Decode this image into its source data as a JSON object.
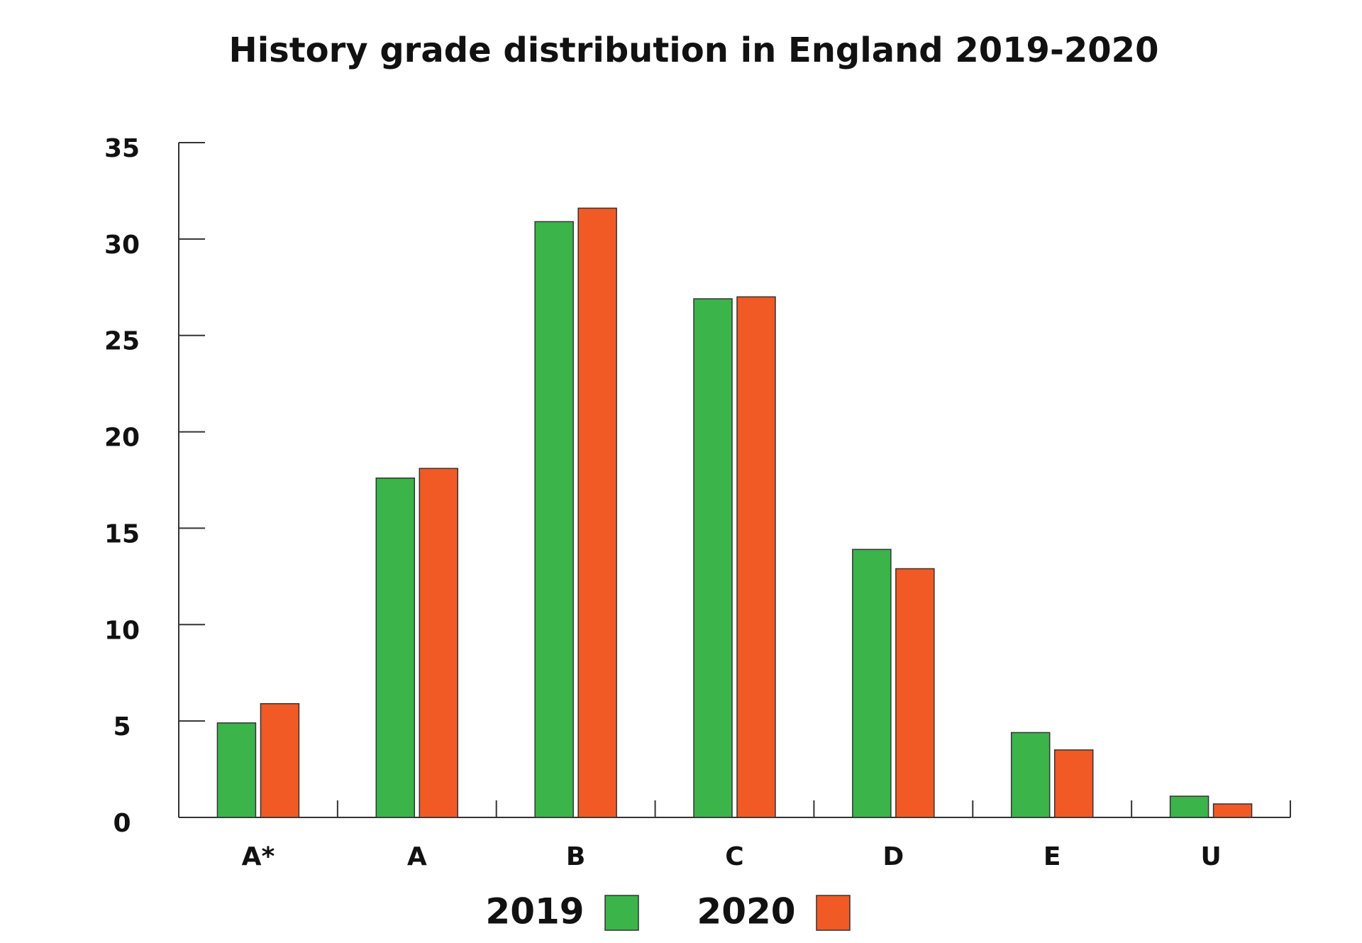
{
  "chart_data": {
    "type": "bar",
    "title": "History grade distribution in England 2019-2020",
    "categories": [
      "A*",
      "A",
      "B",
      "C",
      "D",
      "E",
      "U"
    ],
    "series": [
      {
        "name": "2019",
        "color": "#3bb44a",
        "values": [
          4.9,
          17.6,
          30.9,
          26.9,
          13.9,
          4.4,
          1.1
        ]
      },
      {
        "name": "2020",
        "color": "#f15a24",
        "values": [
          5.9,
          18.1,
          31.6,
          27.0,
          12.9,
          3.5,
          0.7
        ]
      }
    ],
    "ylim": [
      0,
      35
    ],
    "yticks": [
      0,
      5,
      10,
      15,
      20,
      25,
      30,
      35
    ]
  }
}
